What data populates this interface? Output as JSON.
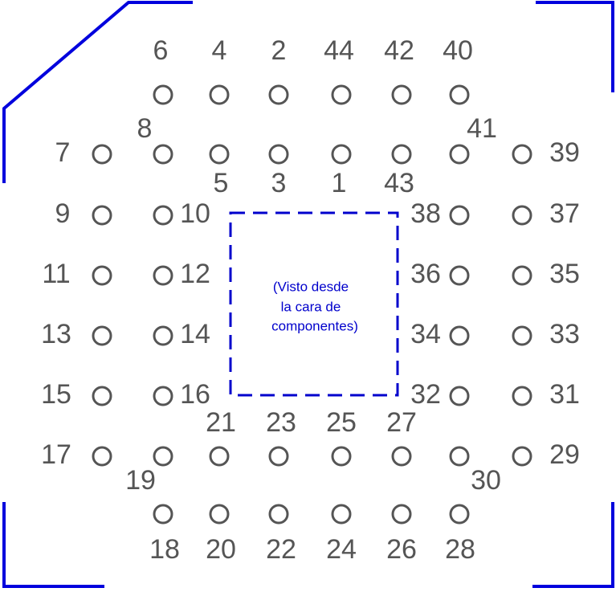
{
  "pins": [
    "6",
    "4",
    "2",
    "44",
    "42",
    "40",
    "7",
    "8",
    "41",
    "39",
    "5",
    "3",
    "1",
    "43",
    "9",
    "10",
    "38",
    "37",
    "11",
    "12",
    "36",
    "35",
    "13",
    "14",
    "34",
    "33",
    "15",
    "16",
    "32",
    "31",
    "21",
    "23",
    "25",
    "27",
    "17",
    "19",
    "30",
    "29",
    "18",
    "20",
    "22",
    "24",
    "26",
    "28"
  ],
  "caption": [
    "(Visto desde",
    "la cara de",
    "componentes)"
  ]
}
